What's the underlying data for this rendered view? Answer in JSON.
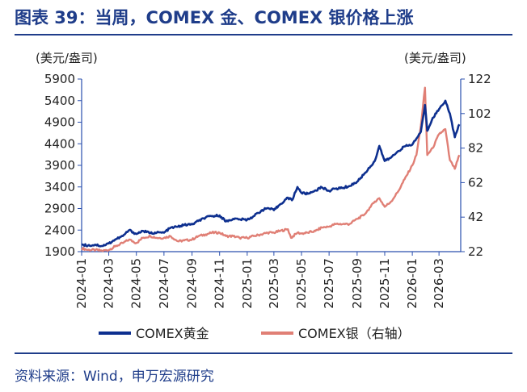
{
  "header": {
    "title": "图表 39：当周，COMEX 金、COMEX 银价格上涨"
  },
  "footer": {
    "source": "资料来源：Wind，申万宏源研究"
  },
  "colors": {
    "gold": "#0d2f8f",
    "silver": "#e07f75",
    "title": "#1f3d8a",
    "axis": "#2a4fae"
  },
  "chart_data": {
    "type": "line",
    "y_left": {
      "unit": "(美元/盎司)",
      "ylim": [
        1900,
        5900
      ],
      "ticks": [
        1900,
        2400,
        2900,
        3400,
        3900,
        4400,
        4900,
        5400,
        5900
      ]
    },
    "y_right": {
      "unit": "(美元/盎司)",
      "ylim": [
        22,
        122
      ],
      "ticks": [
        22,
        42,
        62,
        82,
        102,
        122
      ]
    },
    "x_ticks": [
      "2024-01",
      "2024-03",
      "2024-05",
      "2024-07",
      "2024-09",
      "2024-11",
      "2025-01",
      "2025-03",
      "2025-05",
      "2025-07",
      "2025-09",
      "2025-11",
      "2026-01",
      "2026-03"
    ],
    "grid": false,
    "legend_position": "bottom",
    "series": [
      {
        "name": "COMEX黄金",
        "axis": "left",
        "x": [
          "2024-01-01",
          "2024-01-15",
          "2024-02-01",
          "2024-02-15",
          "2024-03-01",
          "2024-03-15",
          "2024-04-01",
          "2024-04-15",
          "2024-05-01",
          "2024-05-15",
          "2024-06-01",
          "2024-06-15",
          "2024-07-01",
          "2024-07-15",
          "2024-08-01",
          "2024-08-15",
          "2024-09-01",
          "2024-09-15",
          "2024-10-01",
          "2024-10-15",
          "2024-11-01",
          "2024-11-15",
          "2024-12-01",
          "2024-12-15",
          "2025-01-01",
          "2025-01-15",
          "2025-02-01",
          "2025-02-15",
          "2025-03-01",
          "2025-03-15",
          "2025-04-01",
          "2025-04-10",
          "2025-04-22",
          "2025-05-01",
          "2025-05-15",
          "2025-06-01",
          "2025-06-15",
          "2025-07-01",
          "2025-07-15",
          "2025-08-01",
          "2025-08-15",
          "2025-09-01",
          "2025-09-15",
          "2025-10-01",
          "2025-10-10",
          "2025-10-20",
          "2025-11-01",
          "2025-11-15",
          "2025-12-01",
          "2025-12-15",
          "2026-01-01",
          "2026-01-10",
          "2026-01-20",
          "2026-01-29",
          "2026-02-03",
          "2026-02-15",
          "2026-03-01",
          "2026-03-15",
          "2026-03-25",
          "2026-04-05",
          "2026-04-15"
        ],
        "values": [
          2070,
          2040,
          2060,
          2030,
          2090,
          2180,
          2260,
          2400,
          2310,
          2380,
          2330,
          2340,
          2340,
          2450,
          2480,
          2520,
          2530,
          2610,
          2690,
          2720,
          2740,
          2600,
          2660,
          2650,
          2640,
          2720,
          2850,
          2910,
          2860,
          3000,
          3150,
          3090,
          3400,
          3260,
          3240,
          3320,
          3390,
          3310,
          3360,
          3380,
          3420,
          3520,
          3680,
          3880,
          4000,
          4350,
          4000,
          4080,
          4230,
          4340,
          4380,
          4520,
          4680,
          5300,
          4700,
          5000,
          5200,
          5400,
          5100,
          4550,
          4850
        ]
      },
      {
        "name": "COMEX银（右轴）",
        "axis": "right",
        "x": [
          "2024-01-01",
          "2024-01-15",
          "2024-02-01",
          "2024-02-15",
          "2024-03-01",
          "2024-03-15",
          "2024-04-01",
          "2024-04-15",
          "2024-05-01",
          "2024-05-15",
          "2024-06-01",
          "2024-06-15",
          "2024-07-01",
          "2024-07-15",
          "2024-08-01",
          "2024-08-15",
          "2024-09-01",
          "2024-09-15",
          "2024-10-01",
          "2024-10-15",
          "2024-11-01",
          "2024-11-15",
          "2024-12-01",
          "2024-12-15",
          "2025-01-01",
          "2025-01-15",
          "2025-02-01",
          "2025-02-15",
          "2025-03-01",
          "2025-03-15",
          "2025-04-01",
          "2025-04-08",
          "2025-04-22",
          "2025-05-01",
          "2025-05-15",
          "2025-06-01",
          "2025-06-15",
          "2025-07-01",
          "2025-07-15",
          "2025-08-01",
          "2025-08-15",
          "2025-09-01",
          "2025-09-15",
          "2025-10-01",
          "2025-10-10",
          "2025-10-20",
          "2025-11-01",
          "2025-11-15",
          "2025-12-01",
          "2025-12-15",
          "2026-01-01",
          "2026-01-10",
          "2026-01-20",
          "2026-01-29",
          "2026-02-03",
          "2026-02-15",
          "2026-03-01",
          "2026-03-15",
          "2026-03-25",
          "2026-04-05",
          "2026-04-15"
        ],
        "values": [
          24,
          23,
          23,
          22.5,
          23,
          25,
          27,
          29,
          27,
          30,
          31,
          30,
          30,
          31,
          28,
          28.5,
          29,
          31,
          32,
          33,
          33,
          31,
          31,
          30,
          30,
          31,
          32,
          33,
          33,
          34,
          35,
          30,
          33,
          32.5,
          33,
          34,
          36,
          36.5,
          38,
          38,
          38,
          41,
          43,
          48,
          51,
          53,
          48,
          51,
          57,
          64,
          72,
          78,
          95,
          117,
          78,
          82,
          90,
          93,
          75,
          70,
          78
        ]
      }
    ]
  }
}
